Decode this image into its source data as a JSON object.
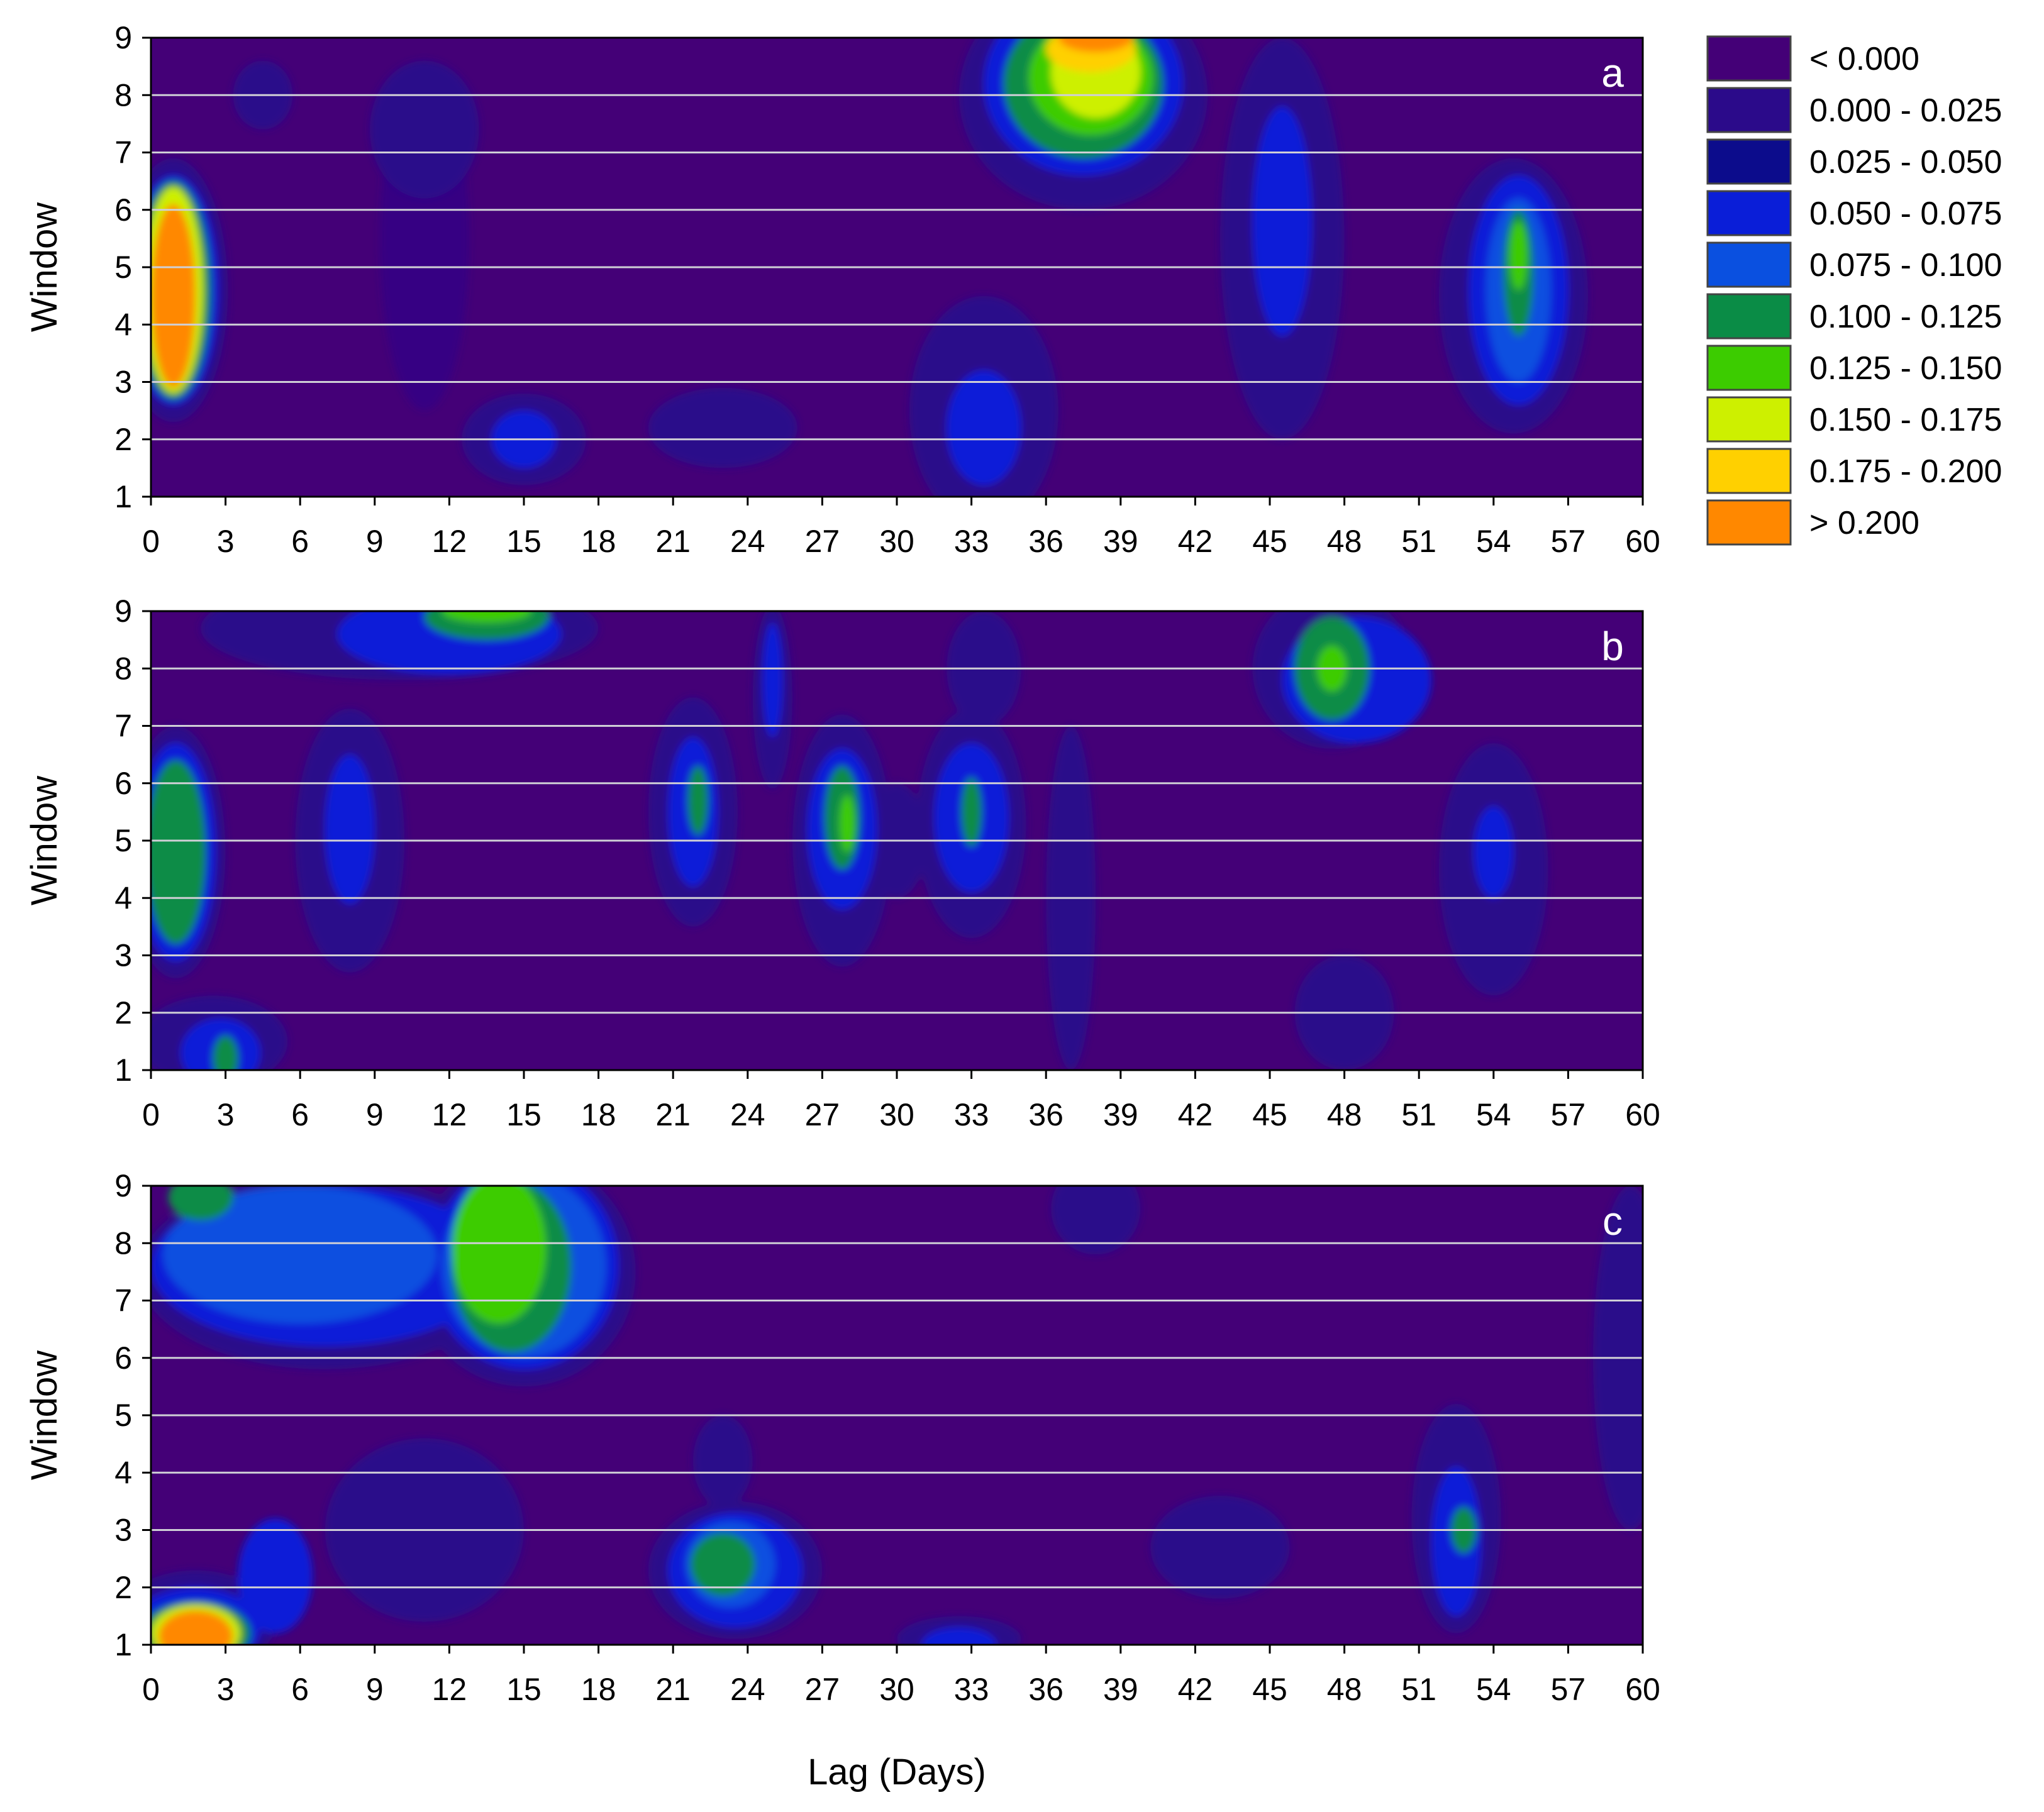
{
  "chart_data": {
    "type": "heatmap",
    "xlabel": "Lag (Days)",
    "ylabel": "Window",
    "xlim": [
      0,
      60
    ],
    "ylim": [
      1,
      9
    ],
    "x_ticks": [
      0,
      3,
      6,
      9,
      12,
      15,
      18,
      21,
      24,
      27,
      30,
      33,
      36,
      39,
      42,
      45,
      48,
      51,
      54,
      57,
      60
    ],
    "y_ticks": [
      1,
      2,
      3,
      4,
      5,
      6,
      7,
      8,
      9
    ],
    "grid": "horizontal white lines at each window",
    "background_class": "< 0.000",
    "legend": {
      "placement": "top-right",
      "entries": [
        {
          "label": "< 0.000",
          "color": "#440077"
        },
        {
          "label": "0.000 - 0.025",
          "color": "#2b0a8a"
        },
        {
          "label": "0.025 - 0.050",
          "color": "#0c0c8c"
        },
        {
          "label": "0.050 - 0.075",
          "color": "#0a1ed8"
        },
        {
          "label": "0.075 - 0.100",
          "color": "#0a50e0"
        },
        {
          "label": "0.100 - 0.125",
          "color": "#0a8c46"
        },
        {
          "label": "0.125 - 0.150",
          "color": "#3ccc00"
        },
        {
          "label": "0.150 - 0.175",
          "color": "#cdf000"
        },
        {
          "label": "0.175 - 0.200",
          "color": "#ffd000"
        },
        {
          "label": "> 0.200",
          "color": "#ff8800"
        }
      ]
    },
    "panels": [
      {
        "label": "a",
        "blobs": [
          {
            "x": 0.9,
            "y": 4.6,
            "rx": 2.2,
            "ry": 2.3,
            "level": 1
          },
          {
            "x": 0.9,
            "y": 4.6,
            "rx": 1.8,
            "ry": 2.0,
            "level": 3
          },
          {
            "x": 0.9,
            "y": 4.6,
            "rx": 1.5,
            "ry": 1.9,
            "level": 5
          },
          {
            "x": 0.9,
            "y": 4.6,
            "rx": 1.2,
            "ry": 1.8,
            "level": 7
          },
          {
            "x": 0.9,
            "y": 4.5,
            "rx": 0.9,
            "ry": 1.6,
            "level": 9
          },
          {
            "x": 37.5,
            "y": 8.0,
            "rx": 5.0,
            "ry": 2.0,
            "level": 1
          },
          {
            "x": 37.5,
            "y": 8.2,
            "rx": 4.0,
            "ry": 1.6,
            "level": 3
          },
          {
            "x": 37.5,
            "y": 8.2,
            "rx": 3.2,
            "ry": 1.3,
            "level": 5
          },
          {
            "x": 37.8,
            "y": 8.3,
            "rx": 2.5,
            "ry": 1.0,
            "level": 6
          },
          {
            "x": 38.0,
            "y": 8.4,
            "rx": 1.8,
            "ry": 0.8,
            "level": 7
          },
          {
            "x": 37.8,
            "y": 8.8,
            "rx": 1.8,
            "ry": 0.4,
            "level": 8
          },
          {
            "x": 38.0,
            "y": 9.0,
            "rx": 1.5,
            "ry": 0.25,
            "level": 9
          },
          {
            "x": 54.8,
            "y": 4.5,
            "rx": 3.0,
            "ry": 2.4,
            "level": 1
          },
          {
            "x": 55.0,
            "y": 4.6,
            "rx": 2.0,
            "ry": 2.0,
            "level": 3
          },
          {
            "x": 55.0,
            "y": 4.6,
            "rx": 1.3,
            "ry": 1.6,
            "level": 4
          },
          {
            "x": 55.0,
            "y": 4.9,
            "rx": 0.6,
            "ry": 1.1,
            "level": 5
          },
          {
            "x": 55.0,
            "y": 5.2,
            "rx": 0.35,
            "ry": 0.6,
            "level": 6
          },
          {
            "x": 45.5,
            "y": 5.5,
            "rx": 2.5,
            "ry": 3.5,
            "level": 1
          },
          {
            "x": 45.5,
            "y": 5.8,
            "rx": 1.2,
            "ry": 2.0,
            "level": 3
          },
          {
            "x": 33.5,
            "y": 2.5,
            "rx": 3.0,
            "ry": 2.0,
            "level": 1
          },
          {
            "x": 33.5,
            "y": 2.2,
            "rx": 1.5,
            "ry": 1.0,
            "level": 3
          },
          {
            "x": 15.0,
            "y": 2.0,
            "rx": 2.5,
            "ry": 0.8,
            "level": 1
          },
          {
            "x": 15.0,
            "y": 2.0,
            "rx": 1.3,
            "ry": 0.5,
            "level": 3
          },
          {
            "x": 11.0,
            "y": 7.4,
            "rx": 2.2,
            "ry": 1.2,
            "level": 1
          },
          {
            "x": 11.0,
            "y": 5.5,
            "rx": 1.8,
            "ry": 3.0,
            "level": 0.5
          },
          {
            "x": 4.5,
            "y": 8.0,
            "rx": 1.2,
            "ry": 0.6,
            "level": 1
          },
          {
            "x": 23.0,
            "y": 2.2,
            "rx": 3.0,
            "ry": 0.7,
            "level": 1
          }
        ]
      },
      {
        "label": "b",
        "blobs": [
          {
            "x": 1.0,
            "y": 4.8,
            "rx": 2.0,
            "ry": 2.2,
            "level": 1
          },
          {
            "x": 1.0,
            "y": 4.8,
            "rx": 1.6,
            "ry": 1.9,
            "level": 3
          },
          {
            "x": 1.0,
            "y": 4.8,
            "rx": 1.2,
            "ry": 1.6,
            "level": 5
          },
          {
            "x": 2.5,
            "y": 1.5,
            "rx": 3.0,
            "ry": 0.8,
            "level": 1
          },
          {
            "x": 2.8,
            "y": 1.3,
            "rx": 1.6,
            "ry": 0.6,
            "level": 3
          },
          {
            "x": 3.0,
            "y": 1.2,
            "rx": 0.5,
            "ry": 0.4,
            "level": 5
          },
          {
            "x": 10.0,
            "y": 8.7,
            "rx": 8.0,
            "ry": 0.9,
            "level": 1
          },
          {
            "x": 12.0,
            "y": 8.6,
            "rx": 4.5,
            "ry": 0.7,
            "level": 3
          },
          {
            "x": 13.5,
            "y": 8.9,
            "rx": 2.5,
            "ry": 0.4,
            "level": 5
          },
          {
            "x": 13.5,
            "y": 9.0,
            "rx": 1.8,
            "ry": 0.2,
            "level": 6
          },
          {
            "x": 8.0,
            "y": 5.0,
            "rx": 2.2,
            "ry": 2.3,
            "level": 1
          },
          {
            "x": 8.0,
            "y": 5.2,
            "rx": 1.0,
            "ry": 1.3,
            "level": 3
          },
          {
            "x": 21.8,
            "y": 5.5,
            "rx": 1.8,
            "ry": 2.0,
            "level": 1
          },
          {
            "x": 21.8,
            "y": 5.5,
            "rx": 1.0,
            "ry": 1.3,
            "level": 3
          },
          {
            "x": 22.0,
            "y": 5.7,
            "rx": 0.4,
            "ry": 0.6,
            "level": 5
          },
          {
            "x": 25.0,
            "y": 7.5,
            "rx": 0.8,
            "ry": 1.6,
            "level": 1
          },
          {
            "x": 25.0,
            "y": 7.8,
            "rx": 0.4,
            "ry": 1.0,
            "level": 3
          },
          {
            "x": 27.8,
            "y": 5.0,
            "rx": 2.0,
            "ry": 2.2,
            "level": 1
          },
          {
            "x": 27.8,
            "y": 5.2,
            "rx": 1.4,
            "ry": 1.4,
            "level": 3
          },
          {
            "x": 27.8,
            "y": 5.4,
            "rx": 0.7,
            "ry": 0.9,
            "level": 5
          },
          {
            "x": 28.0,
            "y": 5.3,
            "rx": 0.3,
            "ry": 0.5,
            "level": 6
          },
          {
            "x": 33.0,
            "y": 5.3,
            "rx": 2.2,
            "ry": 2.0,
            "level": 1
          },
          {
            "x": 33.0,
            "y": 5.4,
            "rx": 1.5,
            "ry": 1.3,
            "level": 3
          },
          {
            "x": 33.0,
            "y": 5.5,
            "rx": 0.4,
            "ry": 0.6,
            "level": 5
          },
          {
            "x": 47.5,
            "y": 8.0,
            "rx": 3.2,
            "ry": 1.4,
            "level": 1
          },
          {
            "x": 48.5,
            "y": 7.8,
            "rx": 3.0,
            "ry": 1.1,
            "level": 3
          },
          {
            "x": 47.5,
            "y": 8.0,
            "rx": 1.5,
            "ry": 0.9,
            "level": 5
          },
          {
            "x": 47.5,
            "y": 8.0,
            "rx": 0.6,
            "ry": 0.4,
            "level": 6
          },
          {
            "x": 54.0,
            "y": 4.5,
            "rx": 2.2,
            "ry": 2.2,
            "level": 1
          },
          {
            "x": 54.0,
            "y": 4.8,
            "rx": 0.8,
            "ry": 0.8,
            "level": 3
          },
          {
            "x": 30.0,
            "y": 5.0,
            "rx": 1.2,
            "ry": 1.0,
            "level": 1
          },
          {
            "x": 37.0,
            "y": 4.0,
            "rx": 1.0,
            "ry": 3.0,
            "level": 1
          },
          {
            "x": 33.5,
            "y": 8.0,
            "rx": 1.5,
            "ry": 1.0,
            "level": 1
          },
          {
            "x": 48.0,
            "y": 2.0,
            "rx": 2.0,
            "ry": 1.0,
            "level": 1
          }
        ]
      },
      {
        "label": "c",
        "blobs": [
          {
            "x": 1.8,
            "y": 1.4,
            "rx": 3.2,
            "ry": 0.9,
            "level": 1
          },
          {
            "x": 1.8,
            "y": 1.3,
            "rx": 2.6,
            "ry": 0.7,
            "level": 3
          },
          {
            "x": 1.8,
            "y": 1.2,
            "rx": 2.2,
            "ry": 0.55,
            "level": 5
          },
          {
            "x": 1.8,
            "y": 1.2,
            "rx": 1.8,
            "ry": 0.5,
            "level": 7
          },
          {
            "x": 1.8,
            "y": 1.15,
            "rx": 1.5,
            "ry": 0.45,
            "level": 9
          },
          {
            "x": 7.0,
            "y": 7.5,
            "rx": 7.5,
            "ry": 1.7,
            "level": 1
          },
          {
            "x": 7.0,
            "y": 7.6,
            "rx": 7.0,
            "ry": 1.4,
            "level": 3
          },
          {
            "x": 6.0,
            "y": 7.8,
            "rx": 5.5,
            "ry": 1.2,
            "level": 4
          },
          {
            "x": 15.0,
            "y": 7.5,
            "rx": 4.5,
            "ry": 2.0,
            "level": 1
          },
          {
            "x": 15.0,
            "y": 7.6,
            "rx": 3.8,
            "ry": 1.8,
            "level": 3
          },
          {
            "x": 15.0,
            "y": 7.6,
            "rx": 3.3,
            "ry": 1.6,
            "level": 4
          },
          {
            "x": 14.5,
            "y": 7.6,
            "rx": 2.4,
            "ry": 1.5,
            "level": 5
          },
          {
            "x": 14.0,
            "y": 7.9,
            "rx": 1.9,
            "ry": 1.3,
            "level": 6
          },
          {
            "x": 2.0,
            "y": 8.8,
            "rx": 1.3,
            "ry": 0.4,
            "level": 5
          },
          {
            "x": 23.5,
            "y": 2.3,
            "rx": 3.5,
            "ry": 1.2,
            "level": 1
          },
          {
            "x": 23.5,
            "y": 2.3,
            "rx": 2.7,
            "ry": 1.0,
            "level": 3
          },
          {
            "x": 23.3,
            "y": 2.4,
            "rx": 1.8,
            "ry": 0.75,
            "level": 4
          },
          {
            "x": 23.0,
            "y": 2.4,
            "rx": 1.3,
            "ry": 0.55,
            "level": 5
          },
          {
            "x": 52.5,
            "y": 3.2,
            "rx": 1.8,
            "ry": 2.0,
            "level": 1
          },
          {
            "x": 52.5,
            "y": 2.8,
            "rx": 1.0,
            "ry": 1.3,
            "level": 3
          },
          {
            "x": 52.8,
            "y": 3.0,
            "rx": 0.5,
            "ry": 0.4,
            "level": 5
          },
          {
            "x": 5.0,
            "y": 2.2,
            "rx": 1.5,
            "ry": 1.0,
            "level": 3
          },
          {
            "x": 32.5,
            "y": 1.1,
            "rx": 2.5,
            "ry": 0.4,
            "level": 1
          },
          {
            "x": 32.5,
            "y": 1.0,
            "rx": 1.5,
            "ry": 0.3,
            "level": 3
          },
          {
            "x": 43.0,
            "y": 2.7,
            "rx": 2.8,
            "ry": 0.9,
            "level": 1
          },
          {
            "x": 38.0,
            "y": 8.6,
            "rx": 1.8,
            "ry": 0.8,
            "level": 1
          },
          {
            "x": 59.5,
            "y": 6.0,
            "rx": 1.5,
            "ry": 3.0,
            "level": 1
          },
          {
            "x": 11.0,
            "y": 3.0,
            "rx": 4.0,
            "ry": 1.6,
            "level": 1
          },
          {
            "x": 23.0,
            "y": 4.2,
            "rx": 1.2,
            "ry": 0.8,
            "level": 1
          }
        ]
      }
    ]
  }
}
